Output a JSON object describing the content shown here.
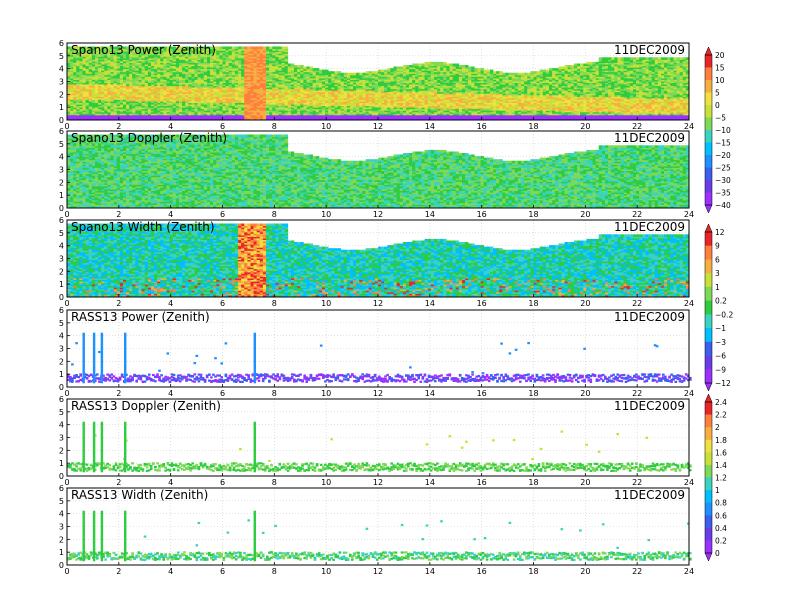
{
  "chart_data": {
    "type": "heatmap",
    "date": "11DEC2009",
    "x_ticks": [
      0,
      2,
      4,
      6,
      8,
      10,
      12,
      14,
      16,
      18,
      20,
      22,
      24
    ],
    "y_ticks": [
      0,
      1,
      2,
      3,
      4,
      5,
      6
    ],
    "xlim": [
      0,
      24
    ],
    "ylim": [
      0,
      6
    ],
    "grid": true,
    "panels": [
      {
        "title": "Spano13 Power (Zenith)",
        "kind": "dense",
        "colorbar": 0
      },
      {
        "title": "Spano13 Doppler (Zenith)",
        "kind": "dense",
        "colorbar": 0
      },
      {
        "title": "Spano13 Width (Zenith)",
        "kind": "dense",
        "colorbar": 1
      },
      {
        "title": "RASS13 Power (Zenith)",
        "kind": "sparse",
        "colorbar": 1
      },
      {
        "title": "RASS13 Doppler (Zenith)",
        "kind": "sparse",
        "colorbar": 2
      },
      {
        "title": "RASS13 Width (Zenith)",
        "kind": "sparse",
        "colorbar": 2
      }
    ],
    "colorbars": [
      {
        "labels": [
          "20",
          "15",
          "10",
          "5",
          "0",
          "−5",
          "−10",
          "−15",
          "−20",
          "−25",
          "−30",
          "−35",
          "−40"
        ]
      },
      {
        "labels": [
          "12",
          "9",
          "6",
          "3",
          "1",
          "0.2",
          "−0.2",
          "−1",
          "−3",
          "−6",
          "−9",
          "−12"
        ]
      },
      {
        "labels": [
          "2.4",
          "2.2",
          "2",
          "1.8",
          "1.6",
          "1.4",
          "1.2",
          "1",
          "0.8",
          "0.6",
          "0.4",
          "0.2",
          "0"
        ]
      }
    ],
    "colors": [
      "#9b30ff",
      "#6a3de8",
      "#3c5ff0",
      "#1e90ff",
      "#00bfff",
      "#3ad2c0",
      "#2ecc40",
      "#7ed957",
      "#c8e03a",
      "#f0e040",
      "#f5b041",
      "#ff7f3f",
      "#e8262a"
    ]
  }
}
